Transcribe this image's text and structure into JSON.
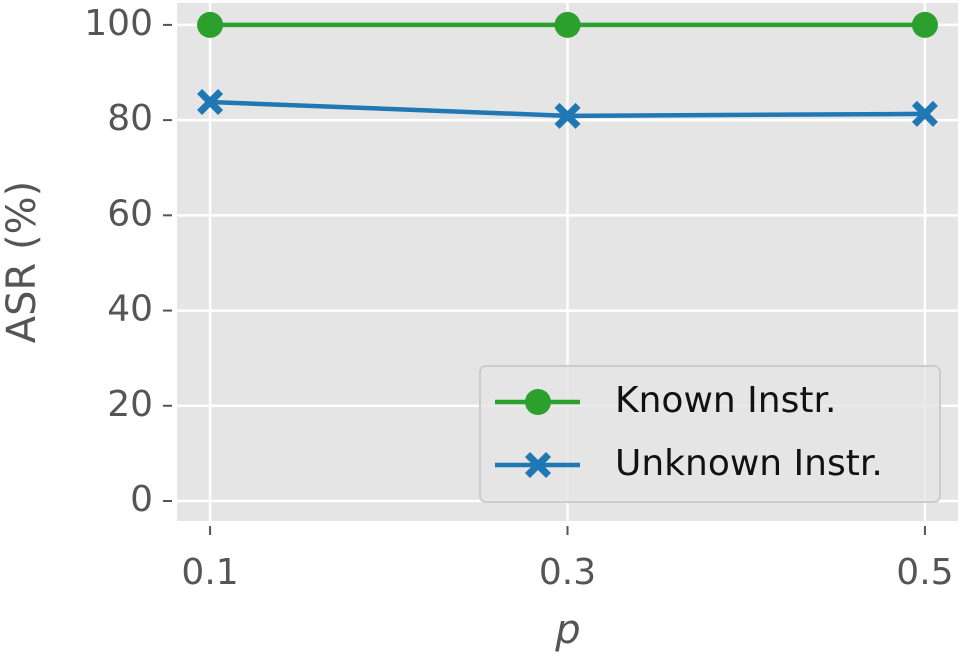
{
  "chart_data": {
    "type": "line",
    "x": [
      0.1,
      0.3,
      0.5
    ],
    "xlabel": "p",
    "ylabel": "ASR (%)",
    "series": [
      {
        "name": "Known Instr.",
        "color": "#2ca02c",
        "marker": "o",
        "values": [
          100,
          100,
          100
        ]
      },
      {
        "name": "Unknown Instr.",
        "color": "#1f77b4",
        "marker": "X",
        "values": [
          83.8,
          80.9,
          81.3
        ]
      }
    ],
    "xlim": [
      0.0815,
      0.5185
    ],
    "ylim": [
      -4.2,
      104.6
    ],
    "xticks": [
      0.1,
      0.3,
      0.5
    ],
    "yticks": [
      0,
      20,
      40,
      60,
      80,
      100
    ],
    "grid": true,
    "legend": "lower right"
  }
}
